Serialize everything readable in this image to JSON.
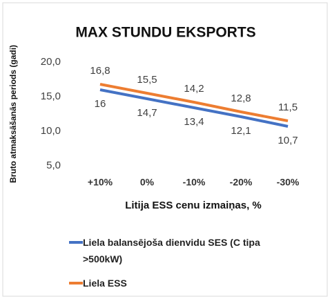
{
  "chart_data": {
    "type": "line",
    "title": "MAX STUNDU EKSPORTS",
    "x_label": "Litija ESS cenu izmaiņas, %",
    "y_label": "Bruto atmaksāšanās periods (gadi)",
    "categories": [
      "+10%",
      "0%",
      "-10%",
      "-20%",
      "-30%"
    ],
    "series": [
      {
        "name": "Liela balansējoša dienvidu SES (C tipa >500kW)",
        "color": "#4472c4",
        "values": [
          16,
          14.7,
          13.4,
          12.1,
          10.7
        ],
        "value_labels": [
          "16",
          "14,7",
          "13,4",
          "12,1",
          "10,7"
        ]
      },
      {
        "name": "Liela ESS",
        "color": "#ed7d31",
        "values": [
          16.8,
          15.5,
          14.2,
          12.8,
          11.5
        ],
        "value_labels": [
          "16,8",
          "15,5",
          "14,2",
          "12,8",
          "11,5"
        ]
      }
    ],
    "ylim": [
      5,
      20
    ],
    "yticks": [
      {
        "value": 5,
        "label": "5,0"
      },
      {
        "value": 10,
        "label": "10,0"
      },
      {
        "value": 15,
        "label": "15,0"
      },
      {
        "value": 20,
        "label": "20,0"
      }
    ],
    "grid": false,
    "legend": "bottom"
  }
}
